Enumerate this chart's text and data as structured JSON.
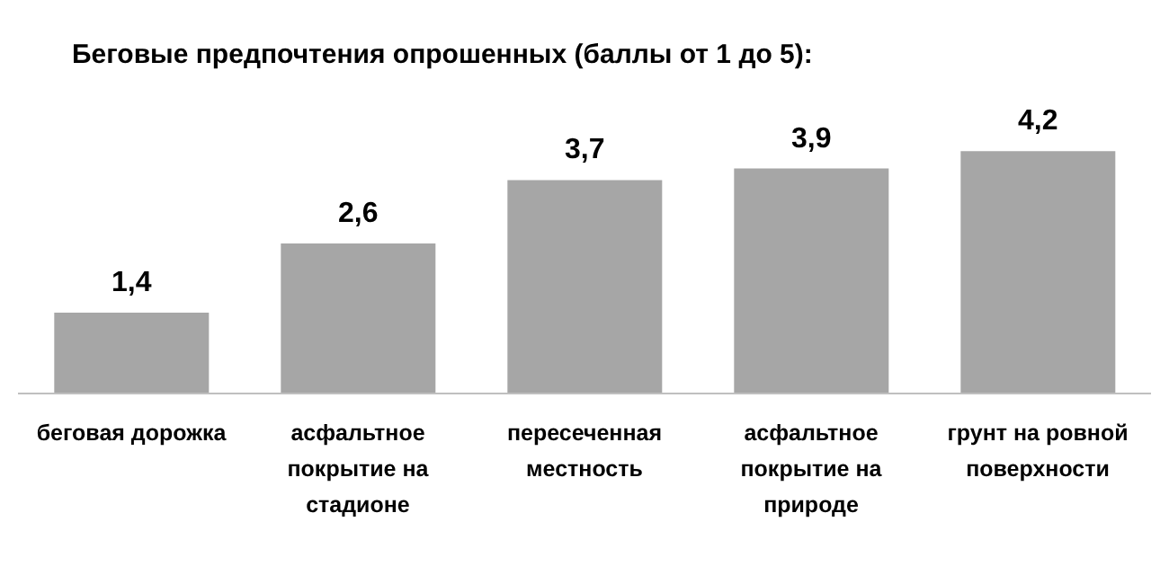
{
  "chart_data": {
    "type": "bar",
    "title": "Беговые предпочтения опрошенных (баллы от 1 до 5):",
    "categories": [
      "беговая дорожка",
      "асфальтное покрытие на стадионе",
      "пересеченная местность",
      "асфальтное покрытие на природе",
      "грунт на ровной поверхности"
    ],
    "values": [
      1.4,
      2.6,
      3.7,
      3.9,
      4.2
    ],
    "value_labels": [
      "1,4",
      "2,6",
      "3,7",
      "3,9",
      "4,2"
    ],
    "color": "#a6a6a6",
    "grid": false,
    "legend": false
  }
}
